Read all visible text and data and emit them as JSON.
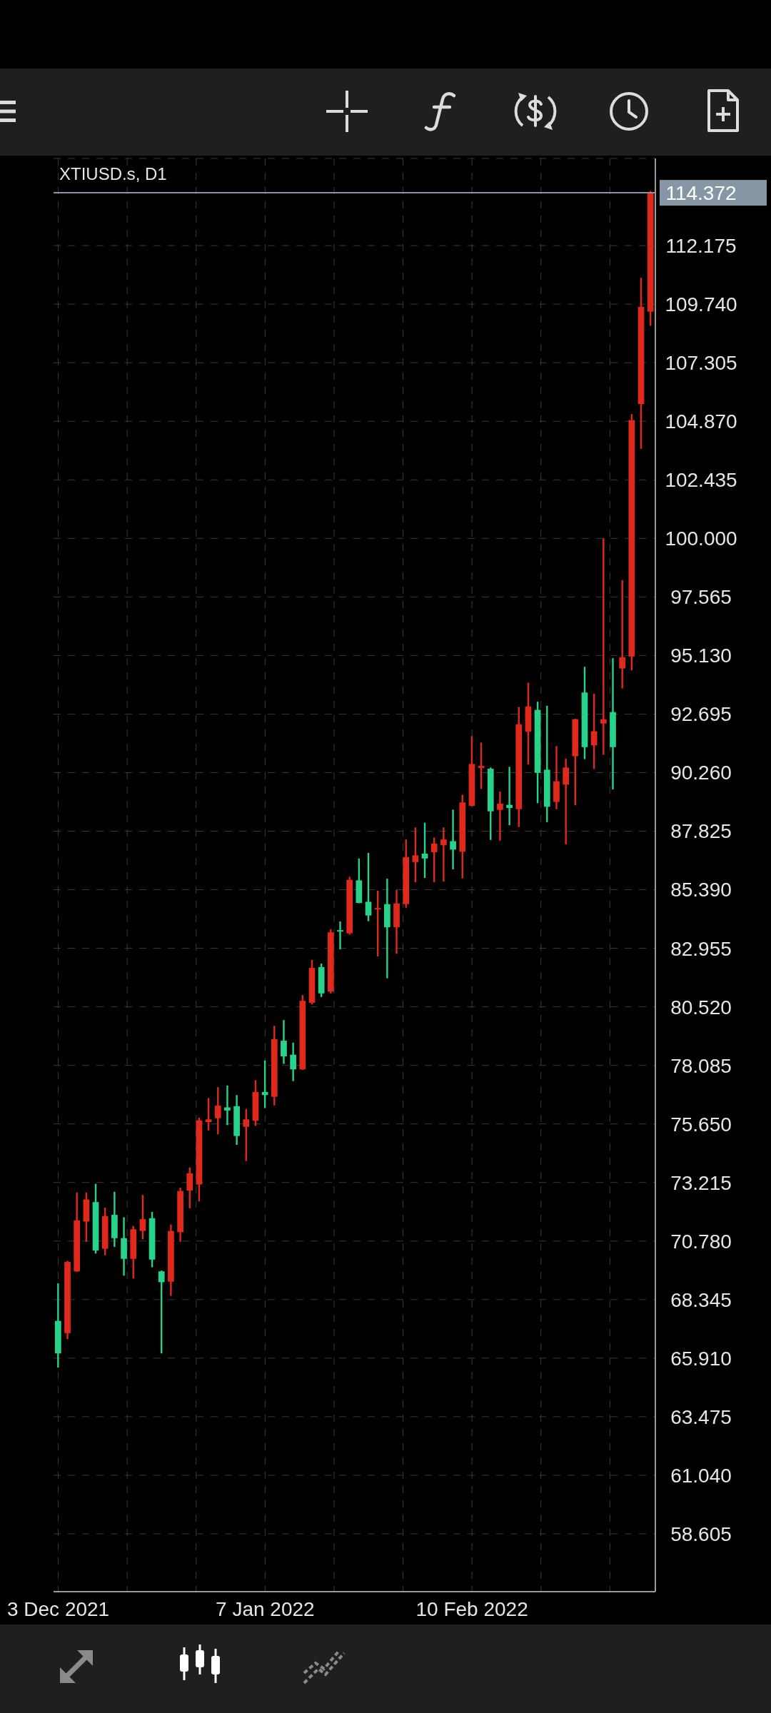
{
  "chart_data": {
    "type": "candlestick",
    "title": "XTIUSD.s, D1",
    "categories": [
      "3 Dec 2021",
      null,
      null,
      null,
      null,
      null,
      null,
      null,
      null,
      null,
      null,
      null,
      null,
      null,
      null,
      null,
      null,
      null,
      null,
      null,
      null,
      null,
      "7 Jan 2022",
      null,
      null,
      null,
      null,
      null,
      null,
      null,
      null,
      null,
      null,
      null,
      null,
      null,
      null,
      null,
      null,
      null,
      null,
      null,
      null,
      null,
      "10 Feb 2022",
      null,
      null,
      null,
      null,
      null,
      null,
      null,
      null,
      null,
      null,
      null,
      null,
      null,
      null,
      null,
      null,
      null,
      null,
      null
    ],
    "ohlc": [
      [
        67.46,
        69.02,
        65.52,
        66.11
      ],
      [
        66.95,
        69.96,
        66.7,
        69.91
      ],
      [
        69.52,
        72.8,
        69.5,
        71.64
      ],
      [
        71.59,
        72.8,
        70.75,
        72.51
      ],
      [
        72.4,
        73.16,
        70.26,
        70.39
      ],
      [
        70.46,
        72.17,
        70.19,
        71.82
      ],
      [
        71.87,
        72.83,
        70.54,
        70.9
      ],
      [
        70.9,
        71.77,
        69.34,
        70.04
      ],
      [
        70.04,
        71.41,
        69.22,
        71.27
      ],
      [
        71.2,
        72.7,
        70.85,
        71.69
      ],
      [
        71.73,
        71.99,
        69.69,
        70.01
      ],
      [
        69.52,
        69.55,
        66.11,
        69.07
      ],
      [
        69.09,
        71.47,
        68.5,
        71.2
      ],
      [
        71.15,
        73.0,
        70.75,
        72.86
      ],
      [
        72.88,
        73.84,
        72.14,
        73.6
      ],
      [
        73.13,
        75.91,
        72.43,
        75.8
      ],
      [
        75.73,
        76.73,
        75.38,
        75.84
      ],
      [
        75.89,
        77.18,
        75.22,
        76.41
      ],
      [
        76.34,
        77.25,
        75.6,
        76.21
      ],
      [
        76.39,
        76.85,
        74.78,
        75.15
      ],
      [
        75.53,
        76.27,
        74.11,
        75.84
      ],
      [
        75.79,
        77.47,
        75.57,
        76.98
      ],
      [
        76.98,
        78.29,
        76.31,
        76.85
      ],
      [
        76.78,
        79.73,
        76.42,
        79.18
      ],
      [
        79.11,
        79.97,
        78.15,
        78.46
      ],
      [
        78.53,
        79.03,
        77.43,
        77.92
      ],
      [
        77.92,
        81.01,
        77.9,
        80.77
      ],
      [
        80.69,
        82.47,
        80.62,
        82.14
      ],
      [
        82.17,
        82.32,
        80.93,
        81.08
      ],
      [
        81.15,
        83.75,
        81.08,
        83.62
      ],
      [
        83.71,
        84.07,
        82.91,
        83.67
      ],
      [
        83.58,
        85.93,
        83.52,
        85.8
      ],
      [
        85.78,
        86.69,
        84.83,
        84.84
      ],
      [
        84.89,
        86.92,
        84.08,
        84.32
      ],
      [
        84.57,
        85.35,
        82.62,
        84.63
      ],
      [
        84.79,
        85.85,
        81.71,
        83.83
      ],
      [
        83.83,
        85.38,
        82.73,
        84.82
      ],
      [
        84.79,
        87.48,
        84.64,
        86.75
      ],
      [
        86.54,
        87.98,
        85.7,
        86.82
      ],
      [
        86.89,
        88.18,
        85.88,
        86.69
      ],
      [
        86.95,
        87.56,
        85.71,
        87.31
      ],
      [
        87.24,
        87.98,
        85.73,
        87.48
      ],
      [
        87.41,
        88.72,
        86.24,
        87.06
      ],
      [
        86.97,
        89.34,
        85.86,
        89.02
      ],
      [
        88.88,
        91.78,
        88.86,
        90.62
      ],
      [
        90.45,
        91.51,
        89.58,
        90.54
      ],
      [
        90.42,
        90.47,
        87.46,
        88.65
      ],
      [
        88.71,
        89.47,
        87.43,
        88.97
      ],
      [
        88.92,
        90.5,
        88.07,
        88.79
      ],
      [
        88.74,
        92.99,
        88.0,
        92.27
      ],
      [
        91.96,
        94.0,
        90.6,
        93.01
      ],
      [
        92.87,
        93.21,
        88.99,
        90.25
      ],
      [
        90.38,
        93.04,
        88.2,
        88.84
      ],
      [
        89.04,
        91.36,
        88.74,
        89.9
      ],
      [
        89.76,
        90.84,
        87.28,
        90.47
      ],
      [
        90.94,
        92.5,
        88.91,
        92.48
      ],
      [
        93.59,
        94.66,
        90.82,
        91.32
      ],
      [
        91.39,
        93.54,
        90.41,
        91.98
      ],
      [
        92.3,
        100.0,
        91.0,
        92.48
      ],
      [
        92.78,
        95.02,
        89.56,
        91.32
      ],
      [
        94.59,
        98.26,
        93.76,
        95.06
      ],
      [
        95.09,
        105.17,
        94.51,
        104.92
      ],
      [
        105.59,
        110.84,
        103.73,
        109.63
      ],
      [
        109.43,
        114.45,
        108.84,
        114.372
      ]
    ],
    "colors": [
      "#27d38b",
      "#e0281c",
      "#e0281c",
      "#e0281c",
      "#27d38b",
      "#e0281c",
      "#27d38b",
      "#27d38b",
      "#e0281c",
      "#e0281c",
      "#27d38b",
      "#27d38b",
      "#e0281c",
      "#e0281c",
      "#e0281c",
      "#e0281c",
      "#e0281c",
      "#e0281c",
      "#27d38b",
      "#27d38b",
      "#e0281c",
      "#e0281c",
      "#27d38b",
      "#e0281c",
      "#27d38b",
      "#27d38b",
      "#e0281c",
      "#e0281c",
      "#27d38b",
      "#e0281c",
      "#27d38b",
      "#e0281c",
      "#27d38b",
      "#27d38b",
      "#e0281c",
      "#27d38b",
      "#e0281c",
      "#e0281c",
      "#e0281c",
      "#27d38b",
      "#e0281c",
      "#e0281c",
      "#27d38b",
      "#e0281c",
      "#e0281c",
      "#e0281c",
      "#27d38b",
      "#e0281c",
      "#27d38b",
      "#e0281c",
      "#e0281c",
      "#27d38b",
      "#27d38b",
      "#e0281c",
      "#e0281c",
      "#e0281c",
      "#27d38b",
      "#e0281c",
      "#e0281c",
      "#27d38b",
      "#e0281c",
      "#e0281c",
      "#e0281c",
      "#e0281c"
    ],
    "ylim": [
      56.2,
      115.8
    ],
    "yticks": [
      {
        "value": 58.605,
        "label": "58.605"
      },
      {
        "value": 61.04,
        "label": "61.040"
      },
      {
        "value": 63.475,
        "label": "63.475"
      },
      {
        "value": 65.91,
        "label": "65.910"
      },
      {
        "value": 68.345,
        "label": "68.345"
      },
      {
        "value": 70.78,
        "label": "70.780"
      },
      {
        "value": 73.215,
        "label": "73.215"
      },
      {
        "value": 75.65,
        "label": "75.650"
      },
      {
        "value": 78.085,
        "label": "78.085"
      },
      {
        "value": 80.52,
        "label": "80.520"
      },
      {
        "value": 82.955,
        "label": "82.955"
      },
      {
        "value": 85.39,
        "label": "85.390"
      },
      {
        "value": 87.825,
        "label": "87.825"
      },
      {
        "value": 90.26,
        "label": "90.260"
      },
      {
        "value": 92.695,
        "label": "92.695"
      },
      {
        "value": 95.13,
        "label": "95.130"
      },
      {
        "value": 97.565,
        "label": "97.565"
      },
      {
        "value": 100,
        "label": "100.000"
      },
      {
        "value": 102.435,
        "label": "102.435"
      },
      {
        "value": 104.87,
        "label": "104.870"
      },
      {
        "value": 107.305,
        "label": "107.305"
      },
      {
        "value": 109.74,
        "label": "109.740"
      },
      {
        "value": 112.175,
        "label": "112.175"
      }
    ],
    "grid": true,
    "ref_lines": [
      {
        "axis": "y",
        "value": 114.372,
        "label": "114.372",
        "color": "#8796a4"
      }
    ]
  }
}
